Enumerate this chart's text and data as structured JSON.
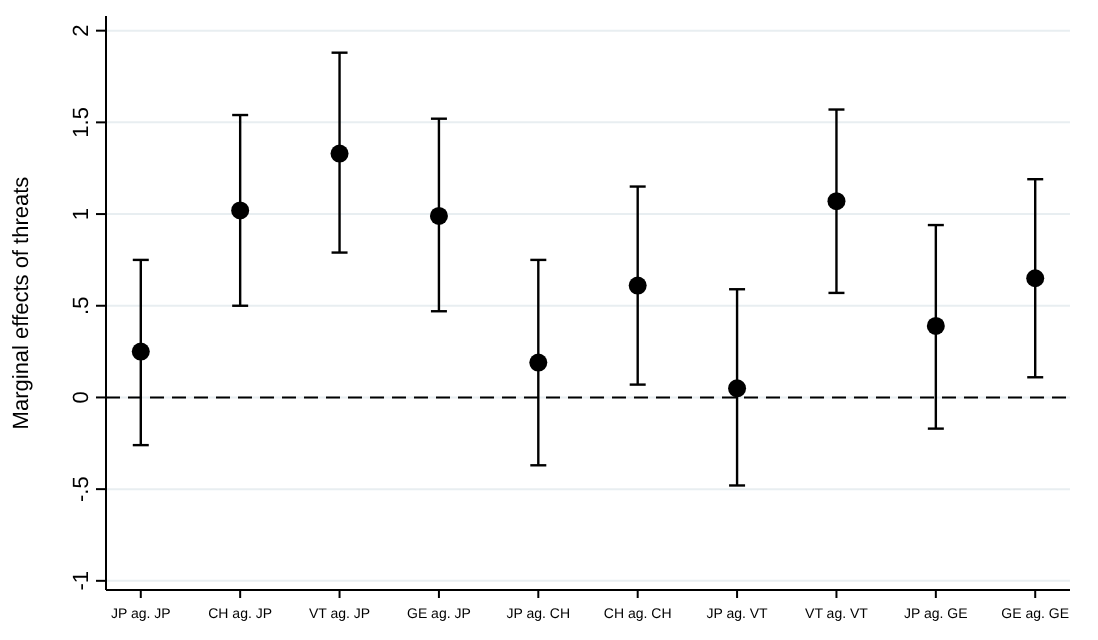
{
  "chart_data": {
    "type": "scatter",
    "ylabel": "Marginal effects of threats",
    "categories": [
      "JP ag. JP",
      "CH ag. JP",
      "VT ag. JP",
      "GE ag. JP",
      "JP ag. CH",
      "CH ag. CH",
      "JP ag. VT",
      "VT ag. VT",
      "JP ag. GE",
      "GE ag. GE"
    ],
    "values": [
      0.25,
      1.02,
      1.33,
      0.99,
      0.19,
      0.61,
      0.05,
      1.07,
      0.39,
      0.65
    ],
    "errors": [
      [
        -0.26,
        0.75
      ],
      [
        0.5,
        1.54
      ],
      [
        0.79,
        1.88
      ],
      [
        0.47,
        1.52
      ],
      [
        -0.37,
        0.75
      ],
      [
        0.07,
        1.15
      ],
      [
        -0.48,
        0.59
      ],
      [
        0.57,
        1.57
      ],
      [
        -0.17,
        0.94
      ],
      [
        0.11,
        1.19
      ]
    ],
    "color": "#000000",
    "marker": "circle",
    "ylim": [
      -1.05,
      2.08
    ],
    "yticks": [
      {
        "value": -1,
        "label": "-1"
      },
      {
        "value": -0.5,
        "label": "-.5"
      },
      0,
      {
        "value": 0.5,
        "label": ".5"
      },
      1,
      1.5,
      2
    ],
    "grid": "y",
    "ref_lines": [
      {
        "axis": "y",
        "value": 0,
        "line_style": "dashed",
        "color": "#000000"
      }
    ]
  }
}
